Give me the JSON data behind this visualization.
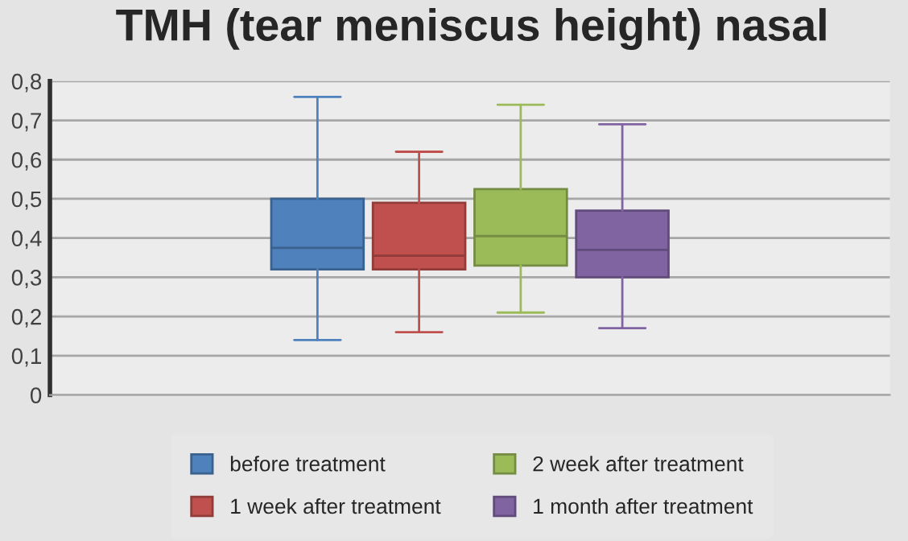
{
  "chart_data": {
    "type": "box",
    "title": "TMH (tear meniscus height) nasal",
    "categories": [
      null
    ],
    "series": [
      {
        "name": "before treatment",
        "color": "#4f81bd",
        "boxes": [
          {
            "low": 0.14,
            "q1": 0.32,
            "median": 0.375,
            "q3": 0.5,
            "high": 0.76
          }
        ]
      },
      {
        "name": "1 week after treatment",
        "color": "#c0504d",
        "boxes": [
          {
            "low": 0.16,
            "q1": 0.32,
            "median": 0.355,
            "q3": 0.49,
            "high": 0.62
          }
        ]
      },
      {
        "name": "2 week after treatment",
        "color": "#9bbb59",
        "boxes": [
          {
            "low": 0.21,
            "q1": 0.33,
            "median": 0.405,
            "q3": 0.525,
            "high": 0.74
          }
        ]
      },
      {
        "name": "1 month after treatment",
        "color": "#8064a2",
        "boxes": [
          {
            "low": 0.17,
            "q1": 0.3,
            "median": 0.37,
            "q3": 0.47,
            "high": 0.69
          }
        ]
      }
    ],
    "ylim": [
      0,
      0.8
    ],
    "yticks": [
      0,
      {
        "value": 0.1,
        "label": "0,1"
      },
      {
        "value": 0.2,
        "label": "0,2"
      },
      {
        "value": 0.3,
        "label": "0,3"
      },
      {
        "value": 0.4,
        "label": "0,4"
      },
      {
        "value": 0.5,
        "label": "0,5"
      },
      {
        "value": 0.6,
        "label": "0,6"
      },
      {
        "value": 0.7,
        "label": "0,7"
      },
      {
        "value": 0.8,
        "label": "0,8"
      }
    ],
    "grid": "y",
    "legend": "bottom"
  }
}
